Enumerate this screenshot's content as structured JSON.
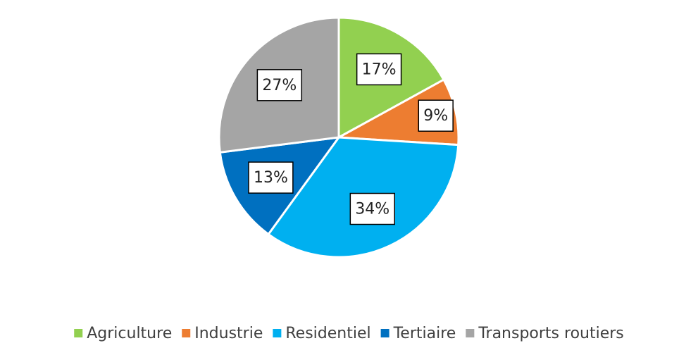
{
  "chart_data": {
    "type": "pie",
    "categories": [
      "Agriculture",
      "Industrie",
      "Residentiel",
      "Tertiaire",
      "Transports routiers"
    ],
    "values": [
      17,
      9,
      34,
      13,
      27
    ],
    "value_labels": [
      "17%",
      "9%",
      "34%",
      "13%",
      "27%"
    ],
    "colors": [
      "#92d050",
      "#ed7d31",
      "#00b0f0",
      "#0070c0",
      "#a5a5a5"
    ],
    "legend": "bottom"
  }
}
